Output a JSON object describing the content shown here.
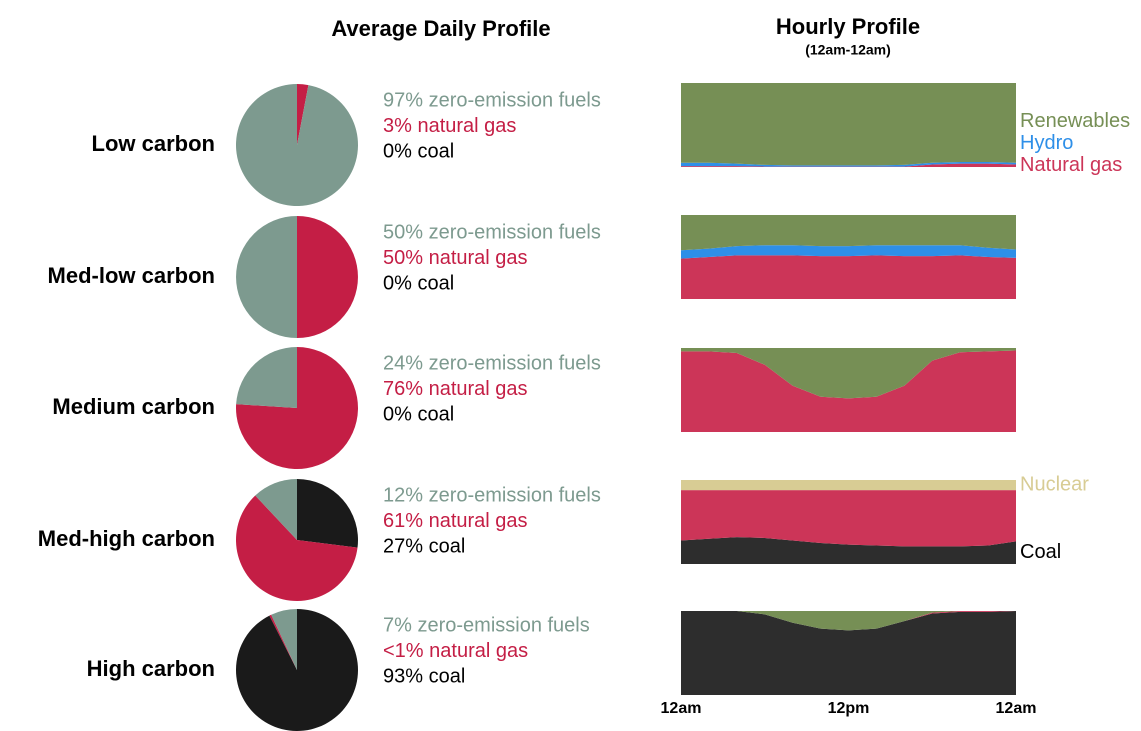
{
  "header": {
    "daily": "Average Daily Profile",
    "hourly": "Hourly Profile",
    "hourly_sub": "(12am-12am)"
  },
  "chart_data": [
    {
      "type": "pie",
      "title": "Low carbon",
      "values": [
        97,
        3,
        0
      ],
      "value_labels": [
        "97% zero-emission fuels",
        "3% natural gas",
        "0% coal"
      ],
      "colors": [
        "#7d9a8f",
        "#c41e45",
        "#1a1a1a"
      ]
    },
    {
      "type": "area",
      "stacked": true,
      "x": [
        0,
        2,
        4,
        6,
        8,
        10,
        12,
        14,
        16,
        18,
        20,
        22,
        24
      ],
      "xlim": [
        0,
        24
      ],
      "ylim": [
        0,
        100
      ],
      "series": [
        {
          "name": "Natural gas",
          "color": "#cc3558",
          "values": [
            1,
            1,
            1,
            0.5,
            0.5,
            0.5,
            0.5,
            0.5,
            0.5,
            3,
            4,
            4,
            3
          ]
        },
        {
          "name": "Hydro",
          "color": "#2e8fe8",
          "values": [
            4,
            4,
            3,
            2,
            1.5,
            1.5,
            1.5,
            1.5,
            2,
            2,
            2,
            2,
            2
          ]
        },
        {
          "name": "Renewables",
          "color": "#768f55",
          "values": [
            95,
            95,
            96,
            97.5,
            98,
            98,
            98,
            98,
            97.5,
            95,
            94,
            94,
            95
          ]
        }
      ]
    },
    {
      "type": "pie",
      "title": "Med-low carbon",
      "values": [
        50,
        50,
        0
      ],
      "value_labels": [
        "50% zero-emission fuels",
        "50% natural gas",
        "0% coal"
      ],
      "colors": [
        "#7d9a8f",
        "#c41e45",
        "#1a1a1a"
      ]
    },
    {
      "type": "area",
      "stacked": true,
      "x": [
        0,
        2,
        4,
        6,
        8,
        10,
        12,
        14,
        16,
        18,
        20,
        22,
        24
      ],
      "xlim": [
        0,
        24
      ],
      "ylim": [
        0,
        100
      ],
      "series": [
        {
          "color": "#cc3558",
          "values": [
            48,
            50,
            52,
            52,
            52,
            51,
            51,
            52,
            51,
            51,
            52,
            50,
            49
          ]
        },
        {
          "color": "#2e8fe8",
          "values": [
            10,
            10,
            11,
            12,
            12,
            12,
            12,
            12,
            13,
            13,
            12,
            11,
            10
          ]
        },
        {
          "color": "#768f55",
          "values": [
            42,
            40,
            37,
            36,
            36,
            37,
            37,
            36,
            36,
            36,
            36,
            39,
            41
          ]
        }
      ]
    },
    {
      "type": "pie",
      "title": "Medium carbon",
      "values": [
        24,
        76,
        0
      ],
      "value_labels": [
        "24% zero-emission fuels",
        "76% natural gas",
        "0% coal"
      ],
      "colors": [
        "#7d9a8f",
        "#c41e45",
        "#1a1a1a"
      ]
    },
    {
      "type": "area",
      "stacked": true,
      "x": [
        0,
        2,
        4,
        6,
        8,
        10,
        12,
        14,
        16,
        18,
        20,
        22,
        24
      ],
      "xlim": [
        0,
        24
      ],
      "ylim": [
        0,
        100
      ],
      "series": [
        {
          "color": "#cc3558",
          "values": [
            96,
            96,
            94,
            80,
            55,
            42,
            40,
            42,
            55,
            85,
            95,
            96,
            97
          ]
        },
        {
          "color": "#768f55",
          "values": [
            4,
            4,
            6,
            20,
            45,
            58,
            60,
            58,
            45,
            15,
            5,
            4,
            3
          ]
        }
      ]
    },
    {
      "type": "pie",
      "title": "Med-high carbon",
      "values": [
        12,
        61,
        27
      ],
      "value_labels": [
        "12% zero-emission fuels",
        "61% natural gas",
        "27% coal"
      ],
      "colors": [
        "#7d9a8f",
        "#c41e45",
        "#1a1a1a"
      ]
    },
    {
      "type": "area",
      "stacked": true,
      "x": [
        0,
        2,
        4,
        6,
        8,
        10,
        12,
        14,
        16,
        18,
        20,
        22,
        24
      ],
      "xlim": [
        0,
        24
      ],
      "ylim": [
        0,
        100
      ],
      "series": [
        {
          "name": "Coal",
          "color": "#2d2d2d",
          "values": [
            28,
            30,
            32,
            31,
            28,
            25,
            23,
            22,
            21,
            21,
            21,
            22,
            27
          ]
        },
        {
          "color": "#cc3558",
          "values": [
            60,
            58,
            56,
            57,
            60,
            63,
            65,
            66,
            67,
            67,
            67,
            66,
            61
          ]
        },
        {
          "name": "Nuclear",
          "color": "#d8cc94",
          "values": [
            12,
            12,
            12,
            12,
            12,
            12,
            12,
            12,
            12,
            12,
            12,
            12,
            12
          ]
        }
      ]
    },
    {
      "type": "pie",
      "title": "High carbon",
      "values": [
        7,
        0.5,
        93
      ],
      "value_labels": [
        "7% zero-emission fuels",
        "<1% natural gas",
        "93% coal"
      ],
      "colors": [
        "#7d9a8f",
        "#c41e45",
        "#1a1a1a"
      ]
    },
    {
      "type": "area",
      "stacked": true,
      "x": [
        0,
        2,
        4,
        6,
        8,
        10,
        12,
        14,
        16,
        18,
        20,
        22,
        24
      ],
      "xlim": [
        0,
        24
      ],
      "ylim": [
        0,
        100
      ],
      "xticks": [
        {
          "value": 0,
          "label": "12am"
        },
        {
          "value": 12,
          "label": "12pm"
        },
        {
          "value": 24,
          "label": "12am"
        }
      ],
      "series": [
        {
          "color": "#2d2d2d",
          "values": [
            100,
            100,
            100,
            96,
            86,
            79,
            77,
            79,
            88,
            97,
            99,
            99,
            100
          ]
        },
        {
          "color": "#cc3558",
          "values": [
            0,
            0,
            0,
            0,
            0,
            0,
            0,
            0,
            0,
            1,
            1,
            1,
            0
          ]
        },
        {
          "color": "#768f55",
          "values": [
            0,
            0,
            0,
            4,
            14,
            21,
            23,
            21,
            12,
            2,
            0,
            0,
            0
          ]
        }
      ]
    }
  ]
}
